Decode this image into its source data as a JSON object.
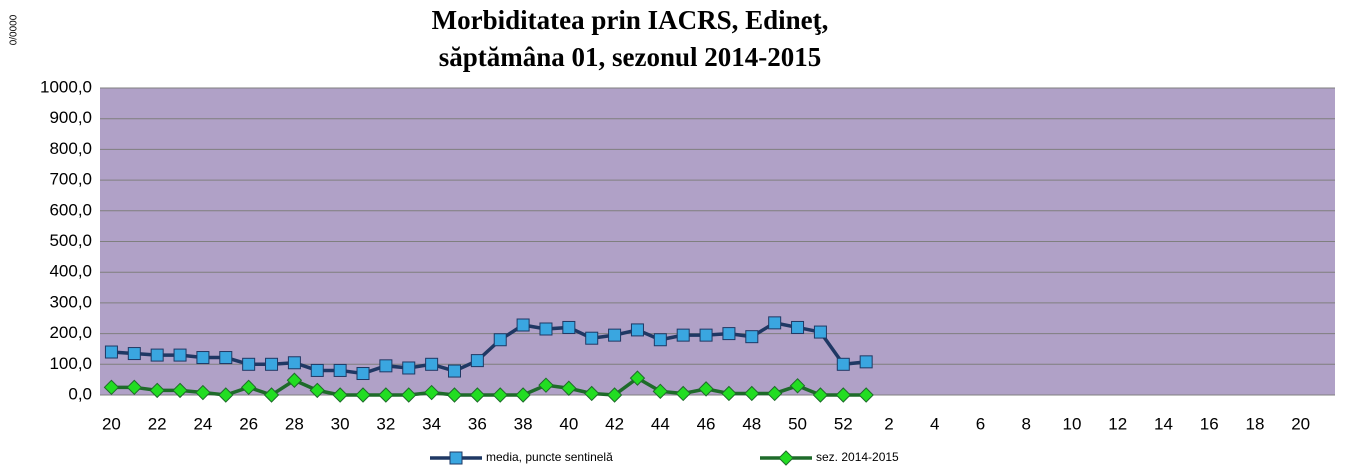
{
  "chart_data": {
    "type": "line",
    "title": [
      "Morbiditatea prin IACRS, Edineţ,",
      "săptămâna  01, sezonul 2014-2015"
    ],
    "y_label": "0/0000",
    "categories": [
      "20",
      null,
      "22",
      null,
      "24",
      null,
      "26",
      null,
      "28",
      null,
      "30",
      null,
      "32",
      null,
      "34",
      null,
      "36",
      null,
      "38",
      null,
      "40",
      null,
      "42",
      null,
      "44",
      null,
      "46",
      null,
      "48",
      null,
      "50",
      null,
      "52",
      null,
      "2",
      null,
      "4",
      null,
      "6",
      null,
      "8",
      null,
      "10",
      null,
      "12",
      null,
      "14",
      null,
      "16",
      null,
      "18",
      null,
      "20",
      null
    ],
    "series": [
      {
        "name": "media, puncte sentinelă",
        "color": "#1f3864",
        "marker_color": "#3aa6e0",
        "marker": "square",
        "values": [
          140,
          135,
          130,
          130,
          122,
          122,
          100,
          100,
          105,
          80,
          80,
          70,
          95,
          88,
          100,
          78,
          112,
          180,
          228,
          215,
          220,
          185,
          195,
          212,
          180,
          195,
          195,
          200,
          190,
          235,
          220,
          205,
          100,
          108,
          null,
          null,
          null,
          null,
          null,
          null,
          null,
          null,
          null,
          null,
          null,
          null,
          null,
          null,
          null,
          null,
          null,
          null,
          null,
          null
        ]
      },
      {
        "name": "sez. 2014-2015",
        "color": "#1e6b2a",
        "marker_color": "#22dd22",
        "marker": "diamond",
        "values": [
          25,
          25,
          15,
          15,
          8,
          0,
          25,
          0,
          48,
          15,
          0,
          0,
          0,
          0,
          8,
          0,
          0,
          0,
          0,
          32,
          22,
          5,
          0,
          55,
          12,
          5,
          20,
          5,
          5,
          5,
          30,
          0,
          0,
          0,
          null,
          null,
          null,
          null,
          null,
          null,
          null,
          null,
          null,
          null,
          null,
          null,
          null,
          null,
          null,
          null,
          null,
          null,
          null,
          null
        ]
      }
    ],
    "ylim": [
      0,
      1000
    ],
    "yticks": [
      {
        "value": 0,
        "label": "0,0"
      },
      {
        "value": 100,
        "label": "100,0"
      },
      {
        "value": 200,
        "label": "200,0"
      },
      {
        "value": 300,
        "label": "300,0"
      },
      {
        "value": 400,
        "label": "400,0"
      },
      {
        "value": 500,
        "label": "500,0"
      },
      {
        "value": 600,
        "label": "600,0"
      },
      {
        "value": 700,
        "label": "700,0"
      },
      {
        "value": 800,
        "label": "800,0"
      },
      {
        "value": 900,
        "label": "900,0"
      },
      {
        "value": 1000,
        "label": "1000,0"
      }
    ],
    "grid": true,
    "plot_background": "#b0a1c7",
    "legend": "bottom"
  }
}
